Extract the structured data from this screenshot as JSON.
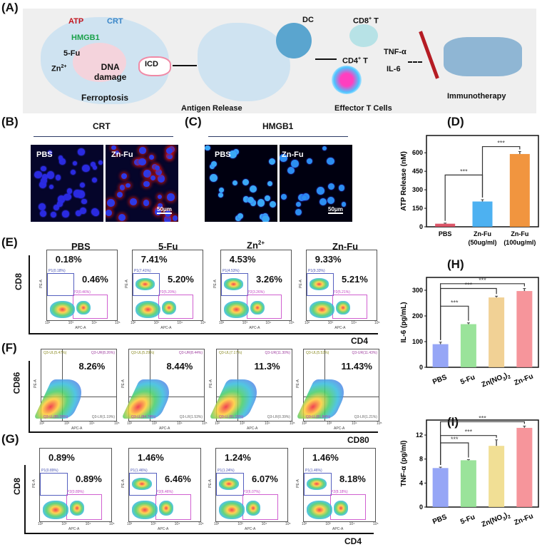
{
  "panel_labels": {
    "a": "(A)",
    "b": "(B)",
    "c": "(C)",
    "d": "(D)",
    "e": "(E)",
    "f": "(F)",
    "g": "(G)",
    "h": "(H)",
    "i": "(I)"
  },
  "schematic": {
    "atp": "ATP",
    "crt": "CRT",
    "hmgb1": "HMGB1",
    "fu": "5-Fu",
    "zn": "Zn",
    "zn_sup": "2+",
    "dna1": "DNA",
    "dna2": "damage",
    "ferroptosis": "Ferroptosis",
    "icd": "ICD",
    "antigen_release": "Antigen Release",
    "dc": "DC",
    "cd8": "CD8",
    "cd8_sup": "+",
    "cd8_t": " T",
    "cd4": "CD4",
    "cd4_sup": "+",
    "cd4_t": " T",
    "tnf": "TNF-α",
    "il6": "IL-6",
    "effector": "Effector T Cells",
    "immunotherapy": "Immunotherapy",
    "colors": {
      "atp": "#c0141e",
      "crt": "#3a86c8",
      "hmgb1": "#1aa14a"
    }
  },
  "crt_panel": {
    "title": "CRT",
    "images": [
      {
        "label": "PBS"
      },
      {
        "label": "Zn-Fu",
        "scale_bar": "50μm"
      }
    ]
  },
  "hmgb1_panel": {
    "title": "HMGB1",
    "images": [
      {
        "label": "PBS"
      },
      {
        "label": "Zn-Fu",
        "scale_bar": "50μm"
      }
    ]
  },
  "flow": {
    "groups": [
      "PBS",
      "5-Fu",
      "Zn",
      "Zn-Fu"
    ],
    "group_zn_sup": "2+",
    "axis_y_small": "PE-A",
    "axis_x_small": "APC-A",
    "ticks": [
      "10²",
      "10³",
      "10⁴",
      "10⁵"
    ],
    "E": {
      "y_axis": "CD8",
      "x_axis": "CD4",
      "plots": [
        {
          "p1": "0.18%",
          "p2": "0.46%",
          "g1": "P1(0.18%)",
          "g2": "P2(0.46%)"
        },
        {
          "p1": "7.41%",
          "p2": "5.20%",
          "g1": "P1(7.41%)",
          "g2": "P2(5.20%)"
        },
        {
          "p1": "4.53%",
          "p2": "3.26%",
          "g1": "P1(4.53%)",
          "g2": "P2(3.26%)"
        },
        {
          "p1": "9.33%",
          "p2": "5.21%",
          "g1": "P1(9.33%)",
          "g2": "P2(5.21%)"
        }
      ]
    },
    "F": {
      "y_axis": "CD86",
      "x_axis": "CD80",
      "plots": [
        {
          "ur": "8.26%",
          "ul_g": "Q3-UL(5.47%)",
          "ur_g": "Q3-UR(8.26%)",
          "ll_g": "Q3-LL(85.09%)",
          "lr_g": "Q3-LR(1.19%)"
        },
        {
          "ur": "8.44%",
          "ul_g": "Q3-UL(5.29%)",
          "ur_g": "Q3-UR(8.44%)",
          "ll_g": "Q3-LL(84.74%)",
          "lr_g": "Q3-LR(1.53%)"
        },
        {
          "ur": "11.3%",
          "ul_g": "Q3-UL(7.17%)",
          "ur_g": "Q3-UR(11.30%)",
          "ll_g": "Q3-LL(81.15%)",
          "lr_g": "Q3-LR(0.39%)"
        },
        {
          "ur": "11.43%",
          "ul_g": "Q3-UL(5.52%)",
          "ur_g": "Q3-UR(11.43%)",
          "ll_g": "Q3-LL(81.84%)",
          "lr_g": "Q3-LR(1.21%)"
        }
      ]
    },
    "G": {
      "y_axis": "CD8",
      "x_axis": "CD4",
      "plots": [
        {
          "p1": "0.89%",
          "p2": "0.89%",
          "g1": "P1(0.89%)",
          "g2": "P2(0.89%)"
        },
        {
          "p1": "1.46%",
          "p2": "6.46%",
          "g1": "P1(1.46%)",
          "g2": "P2(6.46%)"
        },
        {
          "p1": "1.24%",
          "p2": "6.07%",
          "g1": "P1(1.24%)",
          "g2": "P2(6.07%)"
        },
        {
          "p1": "1.46%",
          "p2": "8.18%",
          "g1": "P1(1.46%)",
          "g2": "P2(8.18%)"
        }
      ]
    }
  },
  "chart_data": [
    {
      "id": "D",
      "type": "bar",
      "categories": [
        "PBS",
        "Zn-Fu\n(50ug/ml)",
        "Zn-Fu\n(100ug/ml)"
      ],
      "values": [
        25,
        205,
        590
      ],
      "errors": [
        5,
        15,
        20
      ],
      "ylabel": "ATP Release (nM)",
      "ylim": [
        0,
        740
      ],
      "yticks": [
        0,
        150,
        300,
        450,
        600
      ],
      "colors": [
        "#d9455a",
        "#3aa8f0",
        "#f08a2a"
      ],
      "significance": [
        {
          "from": 0,
          "to": 1,
          "label": "***"
        },
        {
          "from": 1,
          "to": 2,
          "label": "***"
        }
      ]
    },
    {
      "id": "H",
      "type": "bar",
      "categories": [
        "PBS",
        "5-Fu",
        "Zn(NO3)2",
        "Zn-Fu"
      ],
      "values": [
        90,
        168,
        272,
        297
      ],
      "errors": [
        8,
        5,
        5,
        10
      ],
      "ylabel": "IL-6 (pg/mL)",
      "ylim": [
        0,
        350
      ],
      "yticks": [
        0,
        100,
        200,
        300
      ],
      "colors": [
        "#8b9cf5",
        "#8fe08f",
        "#f0cc8a",
        "#f58a90"
      ],
      "significance": [
        {
          "from": 0,
          "to": 1,
          "label": "***"
        },
        {
          "from": 0,
          "to": 2,
          "label": "***"
        },
        {
          "from": 0,
          "to": 3,
          "label": "***"
        }
      ]
    },
    {
      "id": "I",
      "type": "bar",
      "categories": [
        "PBS",
        "5-Fu",
        "Zn(NO3)2",
        "Zn-Fu"
      ],
      "values": [
        6.5,
        7.8,
        10.2,
        13.2
      ],
      "errors": [
        0.15,
        0.1,
        1.0,
        0.3
      ],
      "ylabel": "TNF-α (pg/ml)",
      "ylim": [
        0,
        14.5
      ],
      "yticks": [
        0,
        4,
        8,
        12
      ],
      "colors": [
        "#8b9cf5",
        "#8fe08f",
        "#f0dc8a",
        "#f58a90"
      ],
      "significance": [
        {
          "from": 0,
          "to": 1,
          "label": "***"
        },
        {
          "from": 0,
          "to": 2,
          "label": "***"
        },
        {
          "from": 0,
          "to": 3,
          "label": "***"
        }
      ]
    }
  ]
}
